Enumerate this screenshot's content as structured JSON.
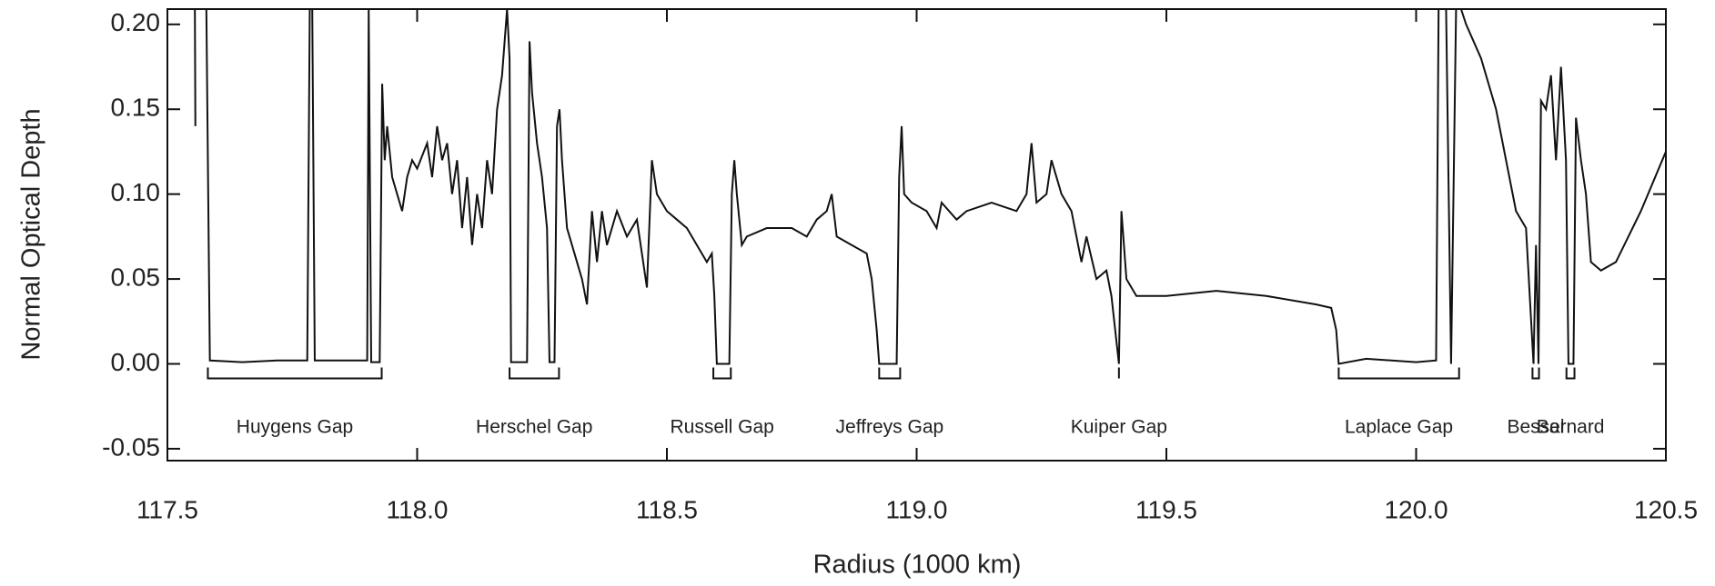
{
  "chart_data": {
    "type": "line",
    "xlabel": "Radius (1000 km)",
    "ylabel": "Normal Optical Depth",
    "xlim": [
      117.5,
      120.5
    ],
    "ylim": [
      -0.057,
      0.209
    ],
    "xticks": [
      117.5,
      {
        "value": 118,
        "label": "118.0"
      },
      118.5,
      {
        "value": 119,
        "label": "119.0"
      },
      119.5,
      {
        "value": 120,
        "label": "120.0"
      },
      120.5
    ],
    "yticks": [
      {
        "value": 0.2,
        "label": "0.20"
      },
      0.15,
      {
        "value": 0.1,
        "label": "0.10"
      },
      0.05,
      {
        "value": 0,
        "label": "0.00"
      },
      -0.05
    ],
    "series": [
      {
        "color": "#111111",
        "x": [
          117.555,
          117.556,
          117.57,
          117.578,
          117.585,
          117.65,
          117.72,
          117.78,
          117.785,
          117.79,
          117.795,
          117.85,
          117.9,
          117.903,
          117.908,
          117.925,
          117.93,
          117.935,
          117.94,
          117.95,
          117.96,
          117.97,
          117.98,
          117.99,
          118.0,
          118.02,
          118.03,
          118.04,
          118.05,
          118.06,
          118.07,
          118.08,
          118.09,
          118.1,
          118.11,
          118.12,
          118.13,
          118.14,
          118.15,
          118.16,
          118.17,
          118.18,
          118.185,
          118.188,
          118.22,
          118.225,
          118.23,
          118.24,
          118.25,
          118.26,
          118.265,
          118.275,
          118.28,
          118.285,
          118.29,
          118.3,
          118.31,
          118.33,
          118.34,
          118.35,
          118.36,
          118.37,
          118.38,
          118.4,
          118.42,
          118.44,
          118.46,
          118.47,
          118.48,
          118.5,
          118.52,
          118.54,
          118.56,
          118.58,
          118.59,
          118.595,
          118.6,
          118.625,
          118.63,
          118.635,
          118.64,
          118.65,
          118.66,
          118.7,
          118.75,
          118.78,
          118.8,
          118.82,
          118.83,
          118.84,
          118.87,
          118.9,
          118.91,
          118.92,
          118.925,
          118.96,
          118.965,
          118.97,
          118.975,
          118.99,
          119.02,
          119.04,
          119.05,
          119.08,
          119.1,
          119.15,
          119.2,
          119.22,
          119.23,
          119.24,
          119.26,
          119.27,
          119.29,
          119.31,
          119.33,
          119.34,
          119.36,
          119.38,
          119.39,
          119.405,
          119.41,
          119.42,
          119.44,
          119.5,
          119.6,
          119.7,
          119.8,
          119.83,
          119.84,
          119.845,
          119.9,
          120.0,
          120.04,
          120.045,
          120.06,
          120.07,
          120.08,
          120.09,
          120.1,
          120.13,
          120.16,
          120.18,
          120.2,
          120.22,
          120.235,
          120.24,
          120.245,
          120.25,
          120.26,
          120.27,
          120.28,
          120.29,
          120.3,
          120.305,
          120.315,
          120.32,
          120.33,
          120.34,
          120.35,
          120.37,
          120.4,
          120.45,
          120.5
        ],
        "values": [
          0.209,
          0.14,
          null,
          0.209,
          0.002,
          0.001,
          0.002,
          0.002,
          0.209,
          0.209,
          0.002,
          0.002,
          0.002,
          0.209,
          0.001,
          0.001,
          0.165,
          0.12,
          0.14,
          0.11,
          0.1,
          0.09,
          0.11,
          0.12,
          0.115,
          0.13,
          0.11,
          0.14,
          0.12,
          0.13,
          0.1,
          0.12,
          0.08,
          0.11,
          0.07,
          0.1,
          0.08,
          0.12,
          0.1,
          0.15,
          0.17,
          0.209,
          0.18,
          0.001,
          0.001,
          0.19,
          0.16,
          0.13,
          0.11,
          0.08,
          0.001,
          0.001,
          0.14,
          0.15,
          0.12,
          0.08,
          0.07,
          0.05,
          0.035,
          0.09,
          0.06,
          0.09,
          0.07,
          0.09,
          0.075,
          0.085,
          0.045,
          0.12,
          0.1,
          0.09,
          0.085,
          0.08,
          0.07,
          0.06,
          0.065,
          0.04,
          0.0,
          0.0,
          0.1,
          0.12,
          0.1,
          0.07,
          0.075,
          0.08,
          0.08,
          0.075,
          0.085,
          0.09,
          0.1,
          0.075,
          0.07,
          0.065,
          0.05,
          0.02,
          0.0,
          0.0,
          0.11,
          0.14,
          0.1,
          0.095,
          0.09,
          0.08,
          0.095,
          0.085,
          0.09,
          0.095,
          0.09,
          0.1,
          0.13,
          0.095,
          0.1,
          0.12,
          0.1,
          0.09,
          0.06,
          0.075,
          0.05,
          0.055,
          0.04,
          0.0,
          0.09,
          0.05,
          0.04,
          0.04,
          0.043,
          0.04,
          0.035,
          0.033,
          0.02,
          0.0,
          0.003,
          0.001,
          0.002,
          0.209,
          0.209,
          0.0,
          0.209,
          0.209,
          0.2,
          0.18,
          0.15,
          0.12,
          0.09,
          0.08,
          0.0,
          0.07,
          0.0,
          0.155,
          0.15,
          0.17,
          0.12,
          0.175,
          0.12,
          0.0,
          0.0,
          0.145,
          0.12,
          0.1,
          0.06,
          0.055,
          0.06,
          0.09,
          0.125
        ]
      }
    ],
    "annotations": [
      {
        "label": "Huygens Gap",
        "x": [
          117.581,
          117.929
        ]
      },
      {
        "label": "Herschel Gap",
        "x": [
          118.185,
          118.284
        ]
      },
      {
        "label": "Russell Gap",
        "x": [
          118.593,
          118.628
        ]
      },
      {
        "label": "Jeffreys Gap",
        "x": [
          118.925,
          118.967
        ]
      },
      {
        "label": "Kuiper Gap",
        "x": [
          119.405,
          119.405
        ]
      },
      {
        "label": "Laplace Gap",
        "x": [
          119.845,
          120.086
        ]
      },
      {
        "label": "Bessel",
        "x": [
          120.233,
          120.246
        ]
      },
      {
        "label": "Barnard",
        "x": [
          120.301,
          120.317
        ]
      }
    ]
  }
}
